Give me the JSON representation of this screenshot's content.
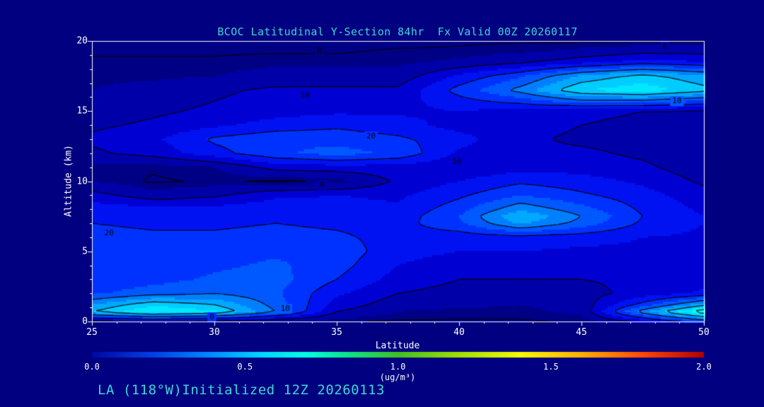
{
  "title": "BCOC Latitudinal Y-Section 84hr  Fx Valid 00Z 20260117",
  "footer": "LA (118°W)Initialized 12Z 20260113",
  "colors": {
    "background": "#000080",
    "accent_text": "#3FD6D6",
    "axis_text": "#FFFFFF",
    "contour_line": "#000000",
    "plot_frame": "#FFFFFF"
  },
  "chart_data": {
    "type": "heatmap",
    "subtype": "filled-contour-latitude-altitude-cross-section",
    "title": "BCOC Latitudinal Y-Section 84hr  Fx Valid 00Z 20260117",
    "xlabel": "Latitude",
    "ylabel": "Altitude (km)",
    "xlim": [
      25,
      50
    ],
    "ylim": [
      0,
      20
    ],
    "x_ticks": [
      25,
      30,
      35,
      40,
      45,
      50
    ],
    "y_ticks": [
      0,
      5,
      10,
      15,
      20
    ],
    "grid_on": false,
    "colorbar": {
      "min": 0.0,
      "max": 2.0,
      "tick_labels": [
        "0.0",
        "0.5",
        "1.0",
        "1.5",
        "2.0"
      ],
      "unit": "(ug/m³)",
      "stops": [
        {
          "v": 0.0,
          "color": "#0008A0"
        },
        {
          "v": 0.2,
          "color": "#0040E8"
        },
        {
          "v": 0.4,
          "color": "#0090FF"
        },
        {
          "v": 0.55,
          "color": "#00D4FF"
        },
        {
          "v": 0.7,
          "color": "#00FFE0"
        },
        {
          "v": 0.85,
          "color": "#10E080"
        },
        {
          "v": 1.0,
          "color": "#40C020"
        },
        {
          "v": 1.2,
          "color": "#A0E000"
        },
        {
          "v": 1.4,
          "color": "#F8F800"
        },
        {
          "v": 1.6,
          "color": "#FFB000"
        },
        {
          "v": 1.8,
          "color": "#FF4800"
        },
        {
          "v": 2.0,
          "color": "#B00000"
        }
      ]
    },
    "fill_bins": [
      {
        "from": 0.0,
        "color": "#000085"
      },
      {
        "from": 0.05,
        "color": "#0000A8"
      },
      {
        "from": 0.1,
        "color": "#0000D2"
      },
      {
        "from": 0.15,
        "color": "#0012F2"
      },
      {
        "from": 0.2,
        "color": "#0032FF"
      },
      {
        "from": 0.25,
        "color": "#0058FF"
      },
      {
        "from": 0.3,
        "color": "#0080FF"
      },
      {
        "from": 0.35,
        "color": "#00A8FF"
      },
      {
        "from": 0.4,
        "color": "#00CCFF"
      },
      {
        "from": 0.45,
        "color": "#00E8FF"
      },
      {
        "from": 0.5,
        "color": "#00FFFF"
      },
      {
        "from": 0.55,
        "color": "#00FFD8"
      }
    ],
    "contour_levels": [
      0.025,
      0.1,
      0.2,
      0.3,
      0.4,
      0.5
    ],
    "contour_labels": [
      {
        "text": "0",
        "lat": 34.3,
        "alt": 19.3
      },
      {
        "text": "0",
        "lat": 48.4,
        "alt": 19.6
      },
      {
        "text": "10",
        "lat": 33.7,
        "alt": 16.1
      },
      {
        "text": "10",
        "lat": 48.9,
        "alt": 15.7
      },
      {
        "text": "20",
        "lat": 36.4,
        "alt": 13.2
      },
      {
        "text": "10",
        "lat": 39.9,
        "alt": 11.4
      },
      {
        "text": "0",
        "lat": 34.4,
        "alt": 9.7
      },
      {
        "text": "20",
        "lat": 25.7,
        "alt": 6.3
      },
      {
        "text": "10",
        "lat": 32.9,
        "alt": 0.9
      },
      {
        "text": "0",
        "lat": 29.9,
        "alt": 0.3
      }
    ],
    "grid": {
      "lats": [
        25,
        27.5,
        30,
        32.5,
        35,
        37.5,
        40,
        42.5,
        45,
        47.5,
        50
      ],
      "alts": [
        0,
        0.7,
        1.2,
        2,
        3,
        4,
        5,
        6,
        7,
        7.5,
        8,
        9,
        10,
        11,
        12,
        13,
        14,
        15,
        15.7,
        16.5,
        17.5,
        18.5,
        19.3,
        20
      ],
      "values": [
        [
          0.08,
          0.1,
          0.08,
          0.05,
          0.03,
          0.02,
          0.02,
          0.02,
          0.03,
          0.12,
          0.25
        ],
        [
          0.4,
          0.5,
          0.46,
          0.3,
          0.1,
          0.05,
          0.04,
          0.04,
          0.06,
          0.33,
          0.55
        ],
        [
          0.35,
          0.44,
          0.4,
          0.28,
          0.13,
          0.07,
          0.06,
          0.05,
          0.07,
          0.22,
          0.38
        ],
        [
          0.24,
          0.28,
          0.3,
          0.26,
          0.16,
          0.1,
          0.08,
          0.07,
          0.08,
          0.12,
          0.16
        ],
        [
          0.21,
          0.23,
          0.26,
          0.27,
          0.2,
          0.13,
          0.1,
          0.1,
          0.1,
          0.11,
          0.13
        ],
        [
          0.2,
          0.21,
          0.24,
          0.26,
          0.22,
          0.15,
          0.12,
          0.12,
          0.12,
          0.12,
          0.13
        ],
        [
          0.2,
          0.21,
          0.22,
          0.24,
          0.23,
          0.17,
          0.15,
          0.15,
          0.14,
          0.14,
          0.14
        ],
        [
          0.22,
          0.21,
          0.21,
          0.22,
          0.21,
          0.18,
          0.17,
          0.18,
          0.17,
          0.15,
          0.14
        ],
        [
          0.2,
          0.19,
          0.19,
          0.2,
          0.19,
          0.18,
          0.24,
          0.36,
          0.28,
          0.19,
          0.15
        ],
        [
          0.19,
          0.18,
          0.18,
          0.19,
          0.18,
          0.17,
          0.25,
          0.4,
          0.3,
          0.2,
          0.15
        ],
        [
          0.18,
          0.17,
          0.17,
          0.18,
          0.17,
          0.16,
          0.23,
          0.34,
          0.27,
          0.19,
          0.14
        ],
        [
          0.12,
          0.07,
          0.09,
          0.14,
          0.15,
          0.14,
          0.19,
          0.25,
          0.21,
          0.17,
          0.12
        ],
        [
          0.05,
          0.02,
          0.03,
          0.02,
          0.03,
          0.11,
          0.15,
          0.19,
          0.17,
          0.14,
          0.09
        ],
        [
          0.04,
          0.03,
          0.05,
          0.12,
          0.13,
          0.13,
          0.11,
          0.13,
          0.13,
          0.11,
          0.07
        ],
        [
          0.09,
          0.12,
          0.18,
          0.24,
          0.27,
          0.24,
          0.14,
          0.11,
          0.11,
          0.09,
          0.07
        ],
        [
          0.11,
          0.14,
          0.21,
          0.24,
          0.23,
          0.21,
          0.17,
          0.11,
          0.09,
          0.08,
          0.06
        ],
        [
          0.09,
          0.11,
          0.14,
          0.17,
          0.19,
          0.17,
          0.13,
          0.12,
          0.1,
          0.09,
          0.08
        ],
        [
          0.07,
          0.09,
          0.11,
          0.13,
          0.14,
          0.14,
          0.15,
          0.13,
          0.11,
          0.1,
          0.09
        ],
        [
          0.06,
          0.08,
          0.1,
          0.12,
          0.13,
          0.13,
          0.18,
          0.22,
          0.28,
          0.28,
          0.24
        ],
        [
          0.05,
          0.07,
          0.09,
          0.11,
          0.11,
          0.11,
          0.22,
          0.32,
          0.45,
          0.48,
          0.42
        ],
        [
          0.04,
          0.04,
          0.05,
          0.07,
          0.07,
          0.07,
          0.16,
          0.24,
          0.36,
          0.42,
          0.36
        ],
        [
          0.03,
          0.03,
          0.03,
          0.04,
          0.04,
          0.04,
          0.06,
          0.09,
          0.13,
          0.17,
          0.15
        ],
        [
          0.02,
          0.02,
          0.02,
          0.02,
          0.02,
          0.03,
          0.03,
          0.04,
          0.06,
          0.08,
          0.08
        ],
        [
          0.01,
          0.01,
          0.01,
          0.01,
          0.01,
          0.01,
          0.02,
          0.02,
          0.02,
          0.02,
          0.02
        ]
      ]
    }
  }
}
